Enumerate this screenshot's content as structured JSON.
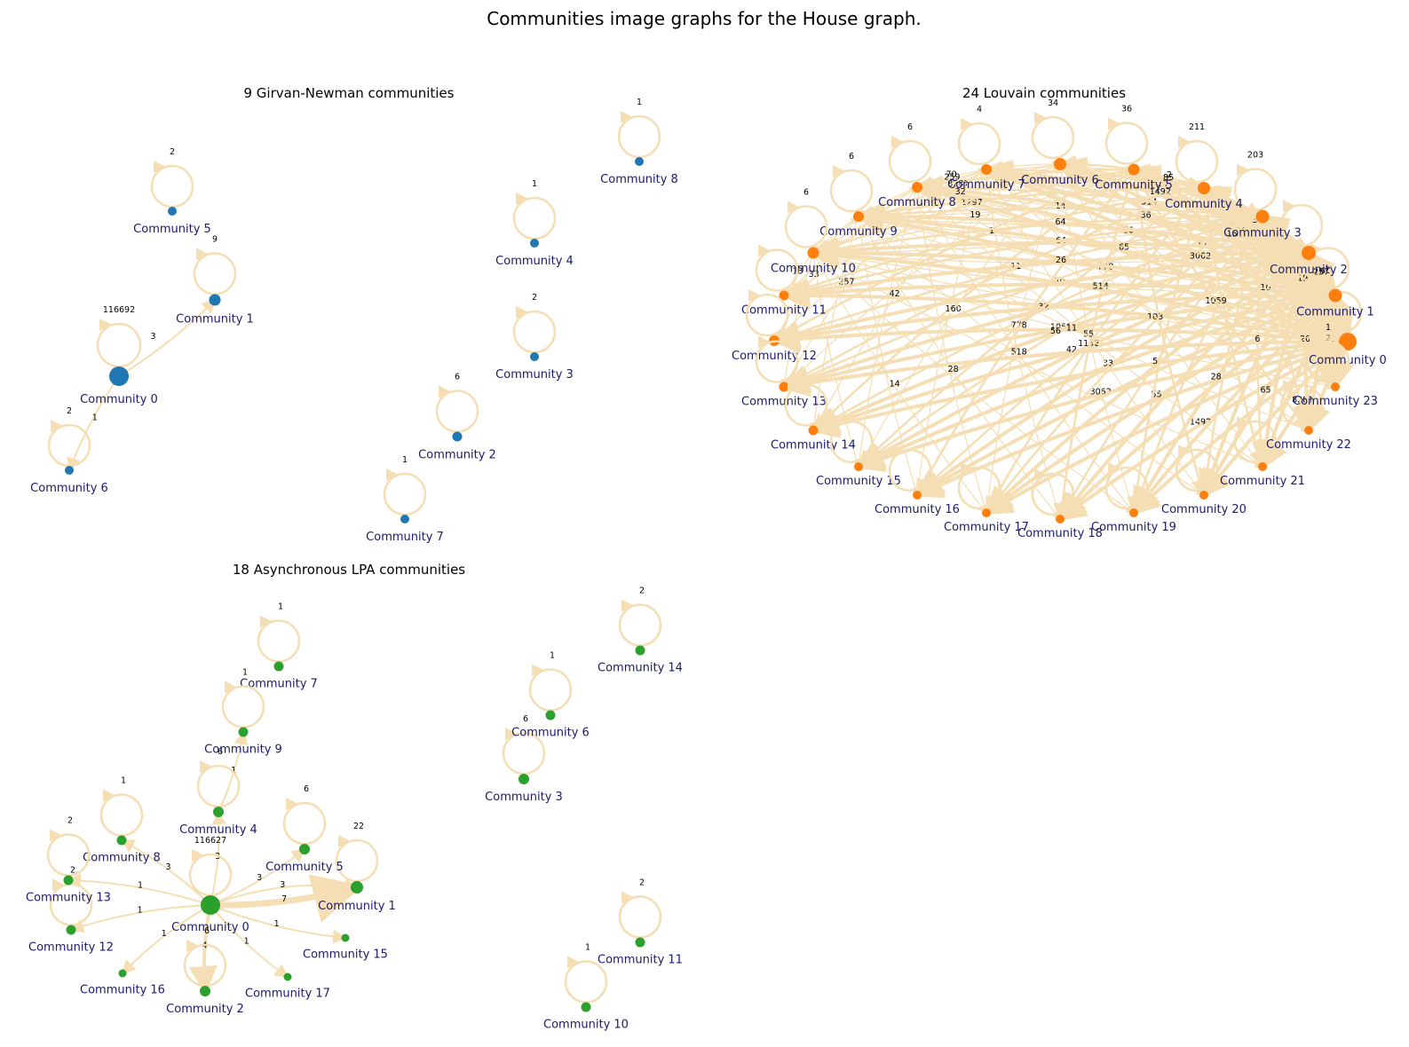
{
  "title": "Communities image graphs for the House graph.",
  "colors": {
    "edge": "#f5deb3",
    "label": "#1a1a6e",
    "gn_node": "#1f77b4",
    "louvain_node": "#ff7f0e",
    "lpa_node": "#2ca02c"
  },
  "panels": {
    "girvan_newman": {
      "title": "9 Girvan-Newman communities",
      "nodes": [
        {
          "id": 0,
          "label": "Community 0",
          "self_loop": "116692"
        },
        {
          "id": 1,
          "label": "Community 1",
          "self_loop": "9"
        },
        {
          "id": 2,
          "label": "Community 2",
          "self_loop": "6"
        },
        {
          "id": 3,
          "label": "Community 3",
          "self_loop": "2"
        },
        {
          "id": 4,
          "label": "Community 4",
          "self_loop": "1"
        },
        {
          "id": 5,
          "label": "Community 5",
          "self_loop": "2"
        },
        {
          "id": 6,
          "label": "Community 6",
          "self_loop": "2"
        },
        {
          "id": 7,
          "label": "Community 7",
          "self_loop": "1"
        },
        {
          "id": 8,
          "label": "Community 8",
          "self_loop": "1"
        }
      ],
      "edges": [
        {
          "source": 0,
          "target": 1,
          "weight": "3"
        },
        {
          "source": 0,
          "target": 6,
          "weight": "1"
        }
      ]
    },
    "louvain": {
      "title": "24 Louvain communities",
      "nodes": [
        {
          "id": 0,
          "label": "Community 0"
        },
        {
          "id": 1,
          "label": "Community 1"
        },
        {
          "id": 2,
          "label": "Community 2"
        },
        {
          "id": 3,
          "label": "Community 3",
          "self_loop": "203"
        },
        {
          "id": 4,
          "label": "Community 4",
          "self_loop": "211"
        },
        {
          "id": 5,
          "label": "Community 5",
          "self_loop": "36"
        },
        {
          "id": 6,
          "label": "Community 6",
          "self_loop": "34"
        },
        {
          "id": 7,
          "label": "Community 7",
          "self_loop": "4"
        },
        {
          "id": 8,
          "label": "Community 8",
          "self_loop": "6"
        },
        {
          "id": 9,
          "label": "Community 9",
          "self_loop": "6"
        },
        {
          "id": 10,
          "label": "Community 10",
          "self_loop": "6"
        },
        {
          "id": 11,
          "label": "Community 11"
        },
        {
          "id": 12,
          "label": "Community 12"
        },
        {
          "id": 13,
          "label": "Community 13"
        },
        {
          "id": 14,
          "label": "Community 14"
        },
        {
          "id": 15,
          "label": "Community 15"
        },
        {
          "id": 16,
          "label": "Community 16"
        },
        {
          "id": 17,
          "label": "Community 17"
        },
        {
          "id": 18,
          "label": "Community 18"
        },
        {
          "id": 19,
          "label": "Community 19"
        },
        {
          "id": 20,
          "label": "Community 20"
        },
        {
          "id": 21,
          "label": "Community 21"
        },
        {
          "id": 22,
          "label": "Community 22"
        },
        {
          "id": 23,
          "label": "Community 23",
          "self_loop": "1"
        }
      ],
      "edge_labels": [
        "85",
        "1297",
        "778",
        "1059",
        "3062",
        "1492",
        "8281",
        "160",
        "103",
        "36",
        "70",
        "42",
        "55",
        "65",
        "259",
        "257",
        "518",
        "514",
        "64",
        "32",
        "33",
        "28",
        "26",
        "19",
        "13",
        "14",
        "11",
        "56",
        "5",
        "6",
        "3",
        "2",
        "1",
        "1152",
        "10",
        "15"
      ]
    },
    "lpa": {
      "title": "18 Asynchronous LPA communities",
      "nodes": [
        {
          "id": 0,
          "label": "Community 0",
          "self_loop": "116627"
        },
        {
          "id": 1,
          "label": "Community 1",
          "self_loop": "22"
        },
        {
          "id": 2,
          "label": "Community 2",
          "self_loop": "6"
        },
        {
          "id": 3,
          "label": "Community 3",
          "self_loop": "6"
        },
        {
          "id": 4,
          "label": "Community 4",
          "self_loop": "6"
        },
        {
          "id": 5,
          "label": "Community 5",
          "self_loop": "6"
        },
        {
          "id": 6,
          "label": "Community 6",
          "self_loop": "1"
        },
        {
          "id": 7,
          "label": "Community 7",
          "self_loop": "1"
        },
        {
          "id": 8,
          "label": "Community 8",
          "self_loop": "1"
        },
        {
          "id": 9,
          "label": "Community 9",
          "self_loop": "1"
        },
        {
          "id": 10,
          "label": "Community 10",
          "self_loop": "1"
        },
        {
          "id": 11,
          "label": "Community 11",
          "self_loop": "2"
        },
        {
          "id": 12,
          "label": "Community 12",
          "self_loop": "2"
        },
        {
          "id": 13,
          "label": "Community 13",
          "self_loop": "2"
        },
        {
          "id": 14,
          "label": "Community 14",
          "self_loop": "2"
        },
        {
          "id": 15,
          "label": "Community 15"
        },
        {
          "id": 16,
          "label": "Community 16"
        },
        {
          "id": 17,
          "label": "Community 17"
        }
      ],
      "edges": [
        {
          "source": 0,
          "target": 1,
          "weight": "7"
        },
        {
          "source": 0,
          "target": 1,
          "weight": "3"
        },
        {
          "source": 0,
          "target": 5,
          "weight": "3"
        },
        {
          "source": 0,
          "target": 4,
          "weight": "3"
        },
        {
          "source": 4,
          "target": 9,
          "weight": "1"
        },
        {
          "source": 0,
          "target": 8,
          "weight": "3"
        },
        {
          "source": 0,
          "target": 13,
          "weight": "1"
        },
        {
          "source": 0,
          "target": 12,
          "weight": "1"
        },
        {
          "source": 0,
          "target": 16,
          "weight": "1"
        },
        {
          "source": 0,
          "target": 2,
          "weight": "4"
        },
        {
          "source": 0,
          "target": 17,
          "weight": "1"
        },
        {
          "source": 0,
          "target": 15,
          "weight": "1"
        }
      ]
    }
  }
}
